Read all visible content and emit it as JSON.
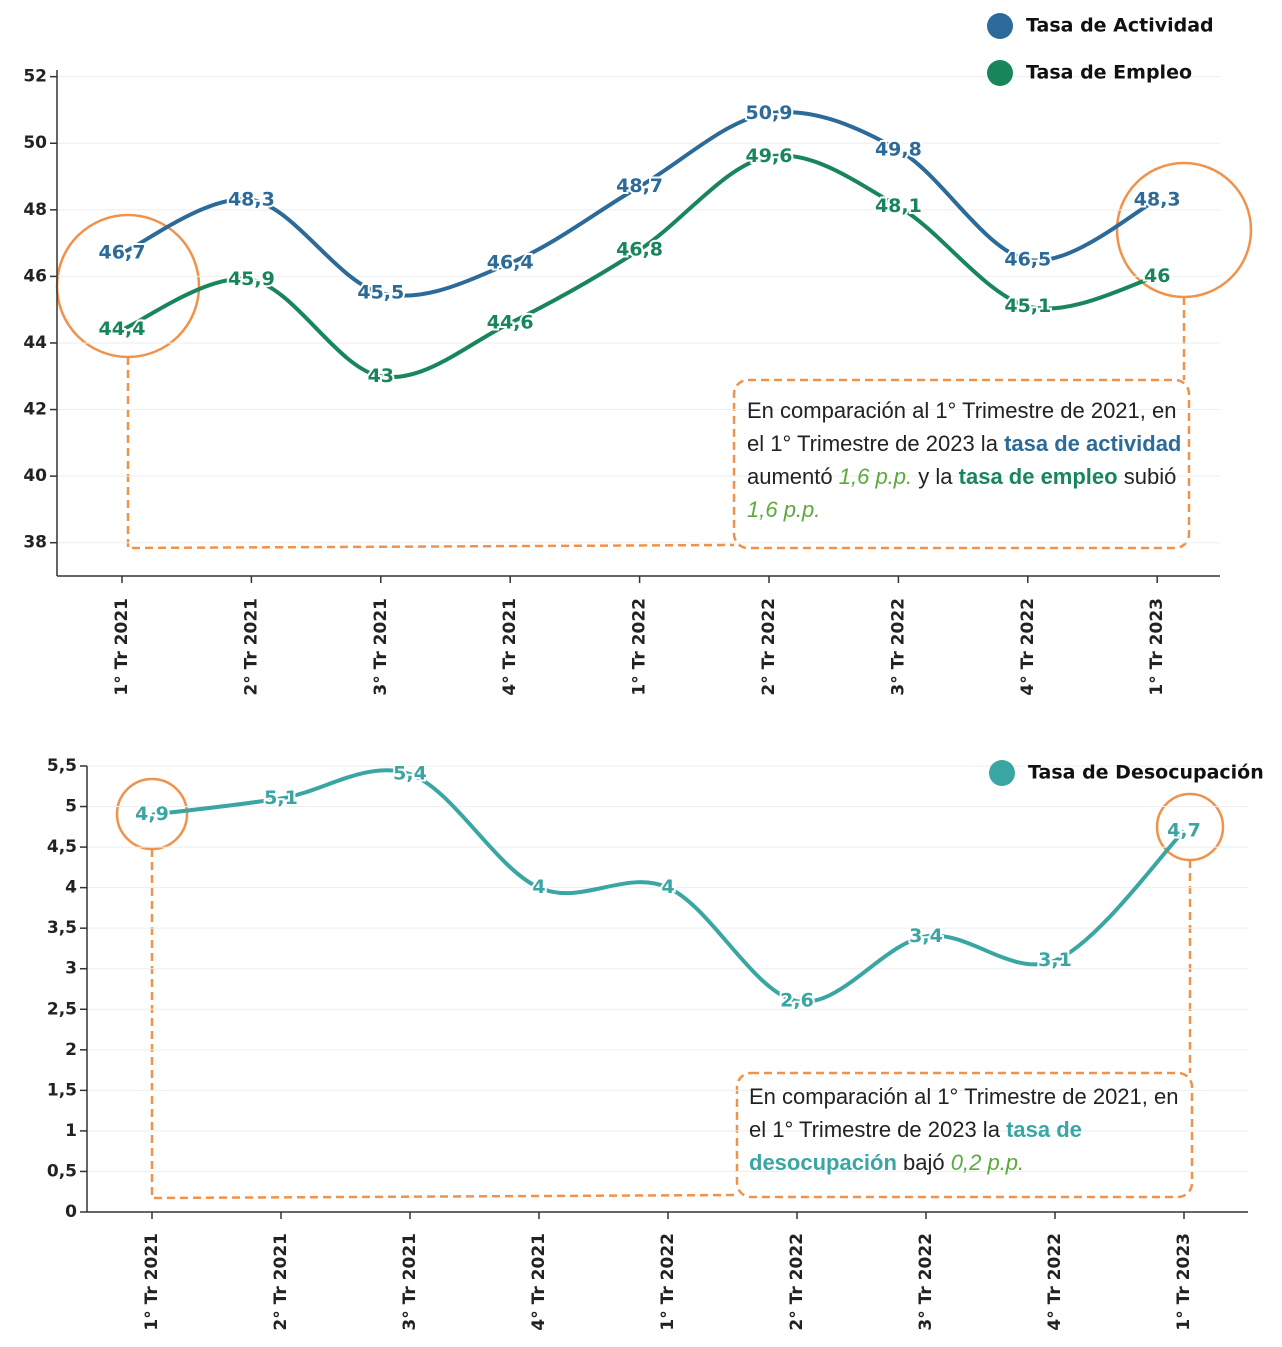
{
  "chart_data": [
    {
      "type": "line",
      "categories": [
        "1° Tr 2021",
        "2° Tr 2021",
        "3° Tr 2021",
        "4° Tr 2021",
        "1° Tr 2022",
        "2° Tr 2022",
        "3° Tr 2022",
        "4° Tr 2022",
        "1° Tr 2023"
      ],
      "series": [
        {
          "name": "Tasa de Actividad",
          "color": "#2b6a99",
          "values": [
            46.7,
            48.3,
            45.5,
            46.4,
            48.7,
            50.9,
            49.8,
            46.5,
            48.3
          ],
          "value_labels": [
            "46,7",
            "48,3",
            "45,5",
            "46,4",
            "48,7",
            "50,9",
            "49,8",
            "46,5",
            "48,3"
          ]
        },
        {
          "name": "Tasa de Empleo",
          "color": "#18855a",
          "values": [
            44.4,
            45.9,
            43,
            44.6,
            46.8,
            49.6,
            48.1,
            45.1,
            46
          ],
          "value_labels": [
            "44,4",
            "45,9",
            "43",
            "44,6",
            "46,8",
            "49,6",
            "48,1",
            "45,1",
            "46"
          ]
        }
      ],
      "ylim": [
        37,
        52.2
      ],
      "yticks": [
        38,
        40,
        42,
        44,
        46,
        48,
        50,
        52
      ],
      "grid": true,
      "annotation": [
        "En comparación al 1° Trimestre de 2021, en el 1° Trimestre de 2023 la",
        "tasa de actividad",
        "aumentó",
        "1,6 p.p.",
        "y la",
        "tasa de empleo",
        "subió",
        "1,6 p.p."
      ]
    },
    {
      "type": "line",
      "categories": [
        "1° Tr 2021",
        "2° Tr 2021",
        "3° Tr 2021",
        "4° Tr 2021",
        "1° Tr 2022",
        "2° Tr 2022",
        "3° Tr 2022",
        "4° Tr 2022",
        "1° Tr 2023"
      ],
      "series": [
        {
          "name": "Tasa de Desocupación",
          "color": "#3aa6a3",
          "values": [
            4.9,
            5.1,
            5.4,
            4,
            4,
            2.6,
            3.4,
            3.1,
            4.7
          ],
          "value_labels": [
            "4,9",
            "5,1",
            "5,4",
            "4",
            "4",
            "2,6",
            "3,4",
            "3,1",
            "4,7"
          ]
        }
      ],
      "ylim": [
        0,
        5.5
      ],
      "yticks": [
        0,
        {
          "value": 0.5,
          "label": "0,5"
        },
        1,
        {
          "value": 1.5,
          "label": "1,5"
        },
        2,
        {
          "value": 2.5,
          "label": "2,5"
        },
        3,
        {
          "value": 3.5,
          "label": "3,5"
        },
        4,
        {
          "value": 4.5,
          "label": "4,5"
        },
        5,
        {
          "value": 5.5,
          "label": "5,5"
        }
      ],
      "grid": true,
      "annotation": [
        "En comparación al 1° Trimestre de 2021, en el 1° Trimestre de 2023 la",
        "tasa de desocupación",
        "bajó",
        "0,2 p.p."
      ]
    }
  ]
}
